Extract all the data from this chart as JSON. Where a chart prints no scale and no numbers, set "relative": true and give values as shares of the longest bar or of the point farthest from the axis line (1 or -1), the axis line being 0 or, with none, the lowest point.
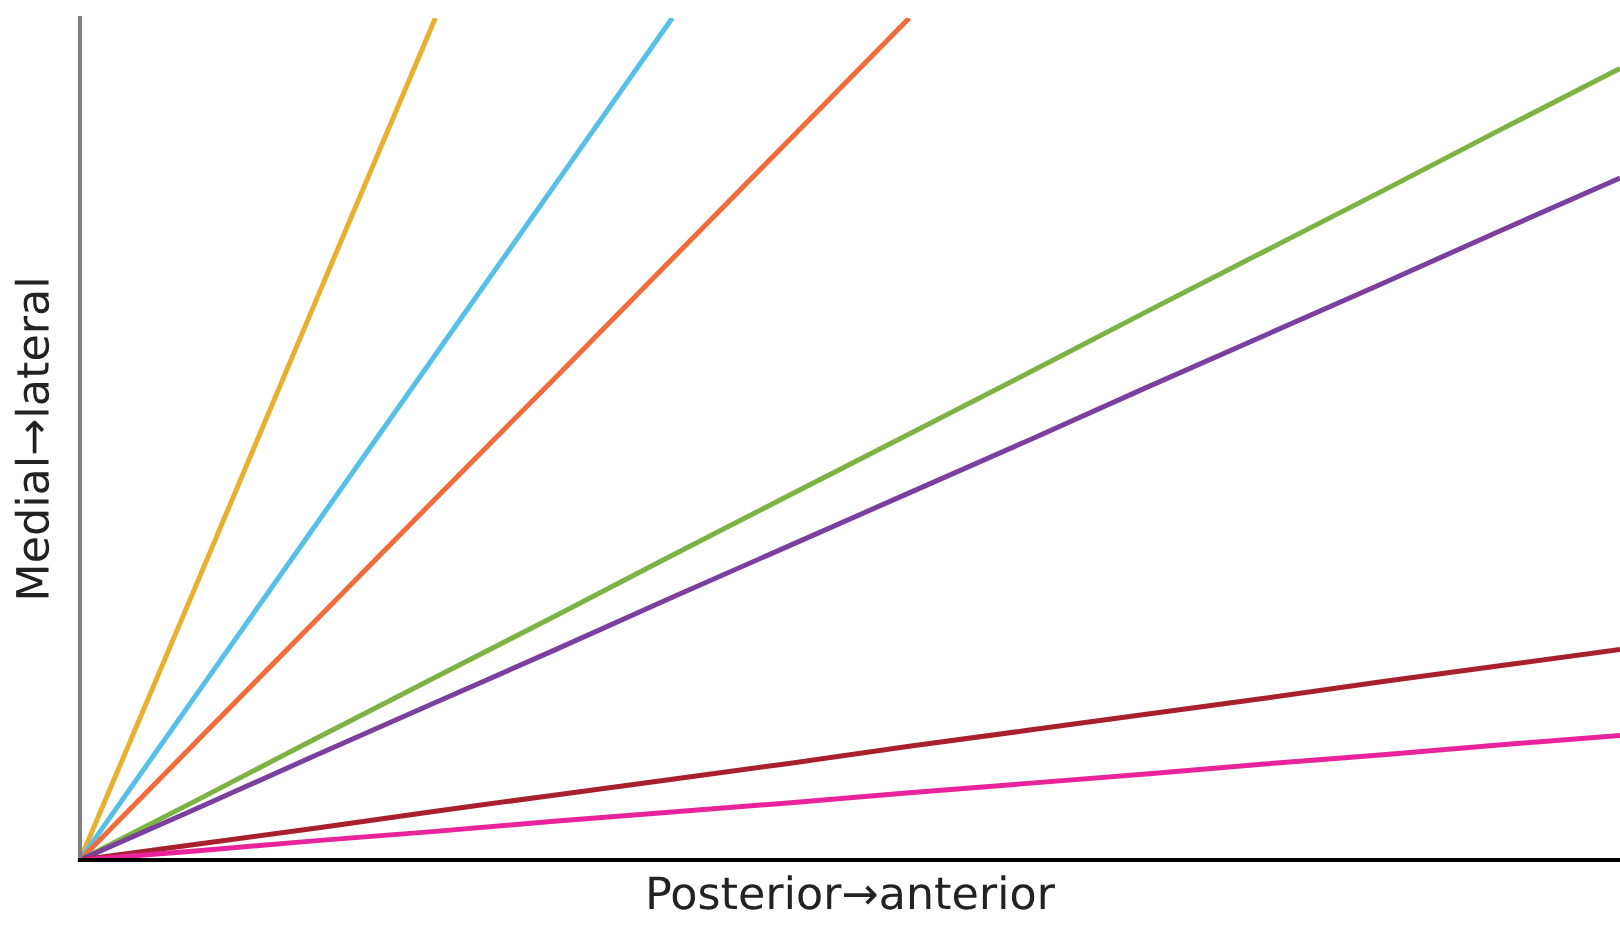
{
  "chart_data": {
    "type": "line",
    "relative": true,
    "xlabel": "Posterior→anterior",
    "ylabel": "Medial→lateral",
    "marker": "none",
    "line_style": "solid",
    "categories": [
      null,
      null,
      null,
      null,
      null,
      null,
      null,
      null,
      null,
      null,
      null,
      null,
      null,
      null
    ],
    "series": [
      {
        "color": "#e8b030",
        "values": [
          0,
          0.333,
          0.667,
          1,
          null,
          null,
          null,
          null,
          null,
          null,
          null,
          null,
          null,
          null
        ]
      },
      {
        "color": "#56c0e8",
        "values": [
          0,
          0.2,
          0.4,
          0.6,
          0.8,
          1,
          null,
          null,
          null,
          null,
          null,
          null,
          null,
          null
        ]
      },
      {
        "color": "#f26b3a",
        "values": [
          0,
          0.143,
          0.286,
          0.429,
          0.571,
          0.714,
          0.857,
          1,
          null,
          null,
          null,
          null,
          null,
          null
        ]
      },
      {
        "color": "#7cb342",
        "values": [
          0,
          0.072,
          0.145,
          0.217,
          0.289,
          0.362,
          0.434,
          0.506,
          0.578,
          0.651,
          0.723,
          0.795,
          0.868,
          0.94
        ]
      },
      {
        "color": "#7b3f9e",
        "values": [
          0,
          0.062,
          0.125,
          0.187,
          0.249,
          0.312,
          0.374,
          0.436,
          0.498,
          0.561,
          0.623,
          0.685,
          0.748,
          0.81
        ]
      },
      {
        "color": "#a8202c",
        "values": [
          0,
          0.019,
          0.038,
          0.058,
          0.077,
          0.096,
          0.115,
          0.135,
          0.154,
          0.173,
          0.192,
          0.212,
          0.231,
          0.25
        ]
      },
      {
        "color": "#e8239c",
        "values": [
          0,
          0.011,
          0.023,
          0.034,
          0.046,
          0.057,
          0.068,
          0.08,
          0.091,
          0.102,
          0.114,
          0.125,
          0.137,
          0.148
        ]
      }
    ]
  }
}
